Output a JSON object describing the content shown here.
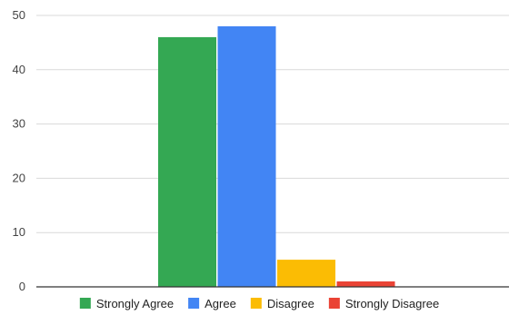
{
  "chart_data": {
    "type": "bar",
    "categories": [
      ""
    ],
    "series": [
      {
        "name": "Strongly Agree",
        "values": [
          46
        ],
        "color": "#34a853"
      },
      {
        "name": "Agree",
        "values": [
          48
        ],
        "color": "#4285f4"
      },
      {
        "name": "Disagree",
        "values": [
          5
        ],
        "color": "#fbbc04"
      },
      {
        "name": "Strongly Disagree",
        "values": [
          1
        ],
        "color": "#ea4335"
      }
    ],
    "ylim": [
      0,
      50
    ],
    "yticks": [
      "0",
      "10",
      "20",
      "30",
      "40",
      "50"
    ],
    "title": "",
    "xlabel": "",
    "ylabel": "",
    "grid": true,
    "legend": "bottom"
  }
}
